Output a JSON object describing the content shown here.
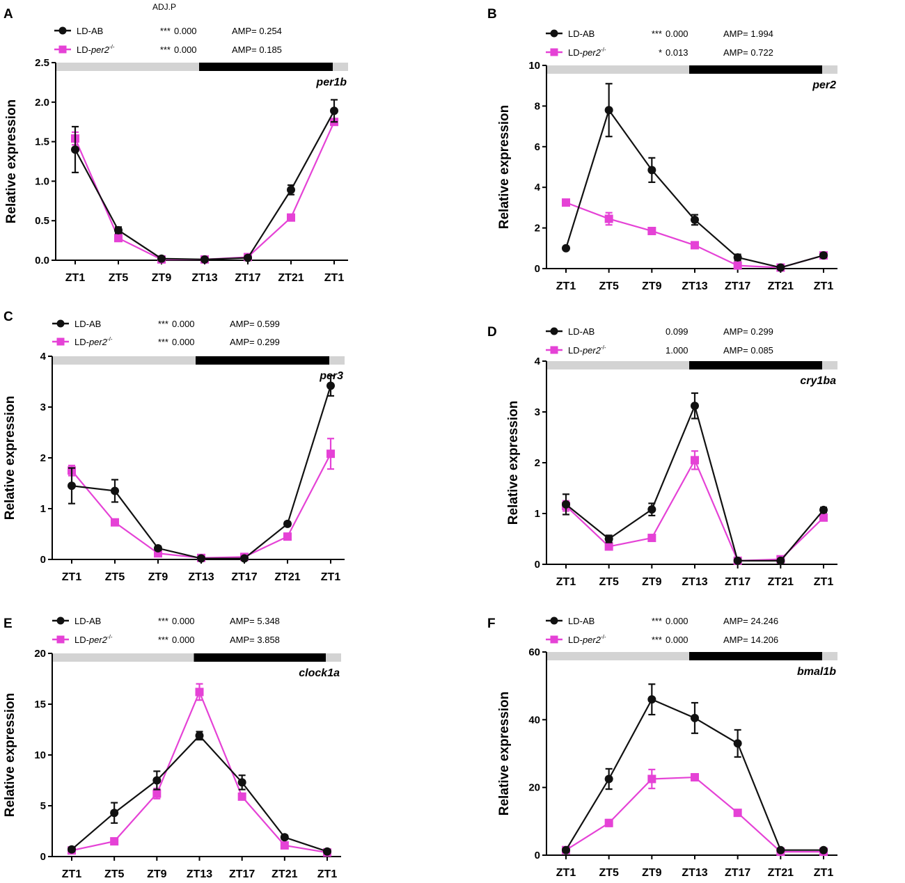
{
  "colors": {
    "wt": "#111111",
    "mut": "#e542d6",
    "light_bar": "#d3d3d3",
    "dark_bar": "#000000"
  },
  "chart_data": [
    {
      "panel": "A",
      "type": "line",
      "gene": "per1b",
      "ylabel": "Relative expression",
      "ylim": [
        0,
        2.5
      ],
      "yticks": [
        "0.0",
        "0.5",
        "1.0",
        "1.5",
        "2.0",
        "2.5"
      ],
      "categories": [
        "ZT1",
        "ZT5",
        "ZT9",
        "ZT13",
        "ZT17",
        "ZT21",
        "ZT1"
      ],
      "header": "ADJ.P",
      "series": [
        {
          "name": "LD-AB",
          "sig": "***",
          "adjp": "0.000",
          "amp": "AMP= 0.254",
          "values": [
            1.4,
            0.38,
            0.02,
            0.01,
            0.03,
            0.89,
            1.89
          ],
          "errors": [
            0.29,
            0.04,
            0.01,
            0.01,
            0.02,
            0.06,
            0.14
          ]
        },
        {
          "name": "LD-per2",
          "name_base": "LD-",
          "name_gene": "per2",
          "name_sup": "-/-",
          "sig": "***",
          "adjp": "0.000",
          "amp": "AMP= 0.185",
          "values": [
            1.54,
            0.28,
            0.01,
            0.01,
            0.04,
            0.54,
            1.75
          ],
          "errors": [
            0.08,
            0.03,
            0.01,
            0.01,
            0.01,
            0.03,
            0.03
          ]
        }
      ]
    },
    {
      "panel": "B",
      "type": "line",
      "gene": "per2",
      "ylabel": "Relative expression",
      "ylim": [
        0,
        10
      ],
      "yticks": [
        "0",
        "2",
        "4",
        "6",
        "8",
        "10"
      ],
      "categories": [
        "ZT1",
        "ZT5",
        "ZT9",
        "ZT13",
        "ZT17",
        "ZT21",
        "ZT1"
      ],
      "header": "",
      "series": [
        {
          "name": "LD-AB",
          "sig": "***",
          "adjp": "0.000",
          "amp": "AMP= 1.994",
          "values": [
            1.0,
            7.8,
            4.85,
            2.4,
            0.55,
            0.05,
            0.65
          ],
          "errors": [
            0.05,
            1.3,
            0.6,
            0.25,
            0.15,
            0.03,
            0.1
          ]
        },
        {
          "name": "LD-per2",
          "name_base": "LD-",
          "name_gene": "per2",
          "name_sup": "-/-",
          "sig": "*",
          "adjp": "0.013",
          "amp": "AMP= 0.722",
          "values": [
            3.25,
            2.45,
            1.85,
            1.15,
            0.15,
            0.05,
            0.65
          ],
          "errors": [
            0.15,
            0.3,
            0.15,
            0.1,
            0.05,
            0.03,
            0.05
          ]
        }
      ]
    },
    {
      "panel": "C",
      "type": "line",
      "gene": "per3",
      "ylabel": "Relative expression",
      "ylim": [
        0,
        4
      ],
      "yticks": [
        "0",
        "1",
        "2",
        "3",
        "4"
      ],
      "categories": [
        "ZT1",
        "ZT5",
        "ZT9",
        "ZT13",
        "ZT17",
        "ZT21",
        "ZT1"
      ],
      "header": "",
      "series": [
        {
          "name": "LD-AB",
          "sig": "***",
          "adjp": "0.000",
          "amp": "AMP= 0.599",
          "values": [
            1.45,
            1.35,
            0.22,
            0.02,
            0.02,
            0.7,
            3.42
          ],
          "errors": [
            0.35,
            0.22,
            0.04,
            0.01,
            0.01,
            0.04,
            0.2
          ]
        },
        {
          "name": "LD-per2",
          "name_base": "LD-",
          "name_gene": "per2",
          "name_sup": "-/-",
          "sig": "***",
          "adjp": "0.000",
          "amp": "AMP= 0.299",
          "values": [
            1.75,
            0.73,
            0.12,
            0.03,
            0.05,
            0.45,
            2.08
          ],
          "errors": [
            0.1,
            0.06,
            0.02,
            0.01,
            0.01,
            0.03,
            0.3
          ]
        }
      ]
    },
    {
      "panel": "D",
      "type": "line",
      "gene": "cry1ba",
      "ylabel": "Relative expression",
      "ylim": [
        0,
        4
      ],
      "yticks": [
        "0",
        "1",
        "2",
        "3",
        "4"
      ],
      "categories": [
        "ZT1",
        "ZT5",
        "ZT9",
        "ZT13",
        "ZT17",
        "ZT21",
        "ZT1"
      ],
      "header": "",
      "series": [
        {
          "name": "LD-AB",
          "sig": "",
          "adjp": "0.099",
          "amp": "AMP= 0.299",
          "values": [
            1.18,
            0.5,
            1.08,
            3.12,
            0.07,
            0.07,
            1.07
          ],
          "errors": [
            0.2,
            0.07,
            0.12,
            0.25,
            0.02,
            0.02,
            0.05
          ]
        },
        {
          "name": "LD-per2",
          "name_base": "LD-",
          "name_gene": "per2",
          "name_sup": "-/-",
          "sig": "",
          "adjp": "1.000",
          "amp": "AMP= 0.085",
          "values": [
            1.15,
            0.35,
            0.52,
            2.05,
            0.07,
            0.1,
            0.92
          ],
          "errors": [
            0.1,
            0.04,
            0.04,
            0.18,
            0.02,
            0.02,
            0.04
          ]
        }
      ]
    },
    {
      "panel": "E",
      "type": "line",
      "gene": "clock1a",
      "ylabel": "Relative expression",
      "ylim": [
        0,
        20
      ],
      "yticks": [
        "0",
        "5",
        "10",
        "15",
        "20"
      ],
      "categories": [
        "ZT1",
        "ZT5",
        "ZT9",
        "ZT13",
        "ZT17",
        "ZT21",
        "ZT1"
      ],
      "header": "",
      "series": [
        {
          "name": "LD-AB",
          "sig": "***",
          "adjp": "0.000",
          "amp": "AMP= 5.348",
          "values": [
            0.7,
            4.3,
            7.5,
            11.9,
            7.3,
            1.9,
            0.5
          ],
          "errors": [
            0.2,
            1.0,
            0.9,
            0.4,
            0.7,
            0.2,
            0.1
          ]
        },
        {
          "name": "LD-per2",
          "name_base": "LD-",
          "name_gene": "per2",
          "name_sup": "-/-",
          "sig": "***",
          "adjp": "0.000",
          "amp": "AMP= 3.858",
          "values": [
            0.6,
            1.5,
            6.2,
            16.2,
            5.9,
            1.1,
            0.4
          ],
          "errors": [
            0.1,
            0.2,
            0.5,
            0.8,
            0.3,
            0.1,
            0.05
          ]
        }
      ]
    },
    {
      "panel": "F",
      "type": "line",
      "gene": "bmal1b",
      "ylabel": "Relative expression",
      "ylim": [
        0,
        60
      ],
      "yticks": [
        "0",
        "20",
        "40",
        "60"
      ],
      "categories": [
        "ZT1",
        "ZT5",
        "ZT9",
        "ZT13",
        "ZT17",
        "ZT21",
        "ZT1"
      ],
      "header": "",
      "series": [
        {
          "name": "LD-AB",
          "sig": "***",
          "adjp": "0.000",
          "amp": "AMP= 24.246",
          "values": [
            1.5,
            22.5,
            46.0,
            40.5,
            33.0,
            1.5,
            1.5
          ],
          "errors": [
            0.3,
            3.0,
            4.5,
            4.5,
            4.0,
            0.3,
            0.3
          ]
        },
        {
          "name": "LD-per2",
          "name_base": "LD-",
          "name_gene": "per2",
          "name_sup": "-/-",
          "sig": "***",
          "adjp": "0.000",
          "amp": "AMP= 14.206",
          "values": [
            1.5,
            9.5,
            22.5,
            23.0,
            12.5,
            1.0,
            1.0
          ],
          "errors": [
            0.3,
            1.0,
            2.8,
            1.0,
            0.8,
            0.2,
            0.2
          ]
        }
      ]
    }
  ]
}
